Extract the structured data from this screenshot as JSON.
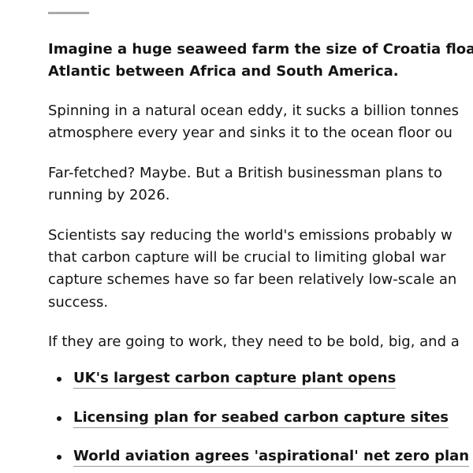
{
  "article": {
    "lead": [
      "Imagine a huge seaweed farm the size of Croatia floatin",
      "Atlantic between Africa and South America."
    ],
    "paragraphs": [
      [
        "Spinning in a natural ocean eddy, it sucks a billion tonnes",
        "atmosphere every year and sinks it to the ocean floor ou"
      ],
      [
        "Far-fetched? Maybe. But a British businessman plans to",
        "running by 2026."
      ],
      [
        "Scientists say reducing the world's emissions probably w",
        "that carbon capture will be crucial to limiting global war",
        "capture schemes have so far been relatively low-scale an",
        "success."
      ],
      [
        "If they are going to work, they need to be bold, big, and a"
      ]
    ],
    "links": [
      "UK's largest carbon capture plant opens",
      "Licensing plan for seabed carbon capture sites",
      "World aviation agrees 'aspirational' net zero plan"
    ]
  }
}
